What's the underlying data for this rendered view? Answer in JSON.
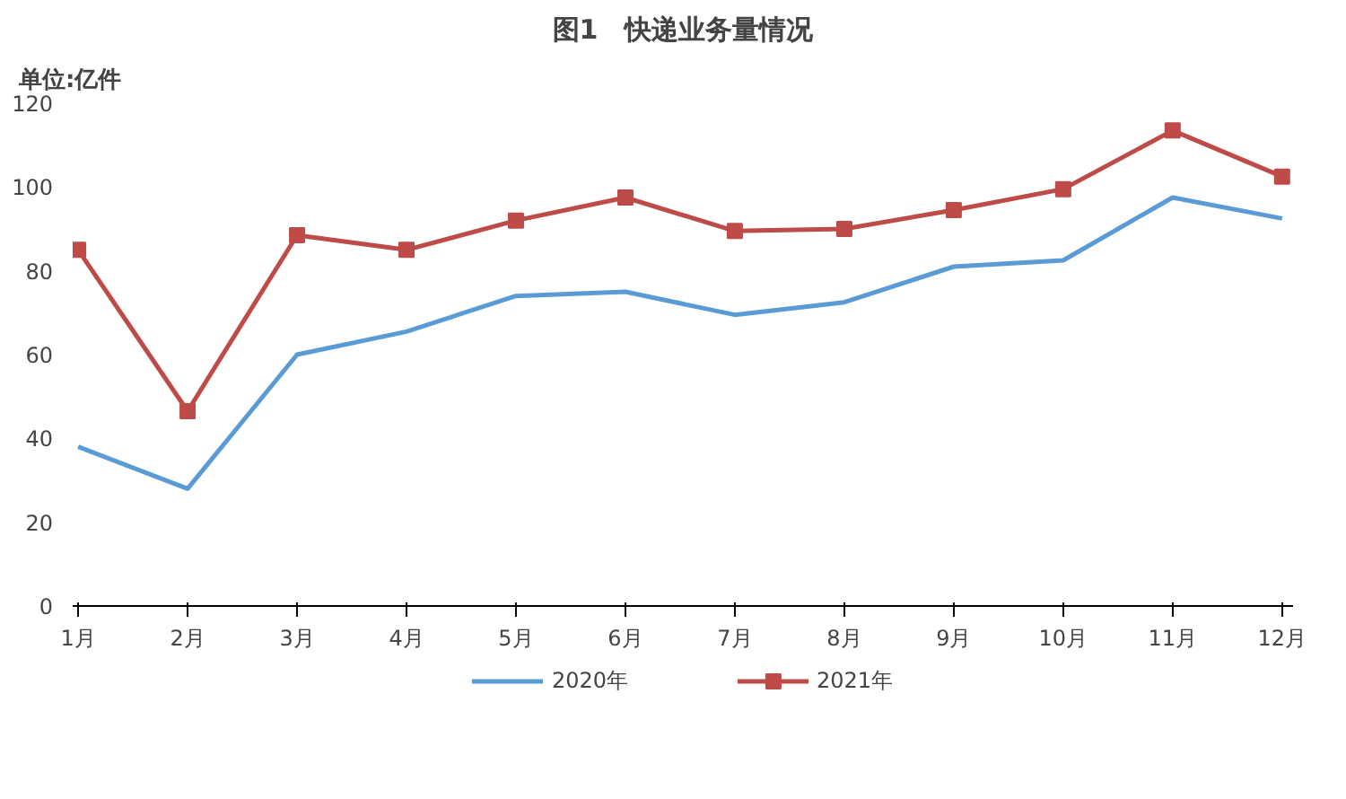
{
  "chart_data": {
    "type": "line",
    "title": "图1　快递业务量情况",
    "ylabel": "单位:亿件",
    "categories": [
      "1月",
      "2月",
      "3月",
      "4月",
      "5月",
      "6月",
      "7月",
      "8月",
      "9月",
      "10月",
      "11月",
      "12月"
    ],
    "series": [
      {
        "name": "2020年",
        "color": "#5b9bd5",
        "marker": "none",
        "values": [
          38,
          28,
          60,
          65.5,
          74,
          75,
          69.5,
          72.5,
          81,
          82.5,
          97.5,
          92.5
        ]
      },
      {
        "name": "2021年",
        "color": "#be4b48",
        "marker": "square",
        "values": [
          85,
          46.5,
          88.5,
          85,
          92,
          97.5,
          89.5,
          90,
          94.5,
          99.5,
          113.5,
          102.5
        ]
      }
    ],
    "ylim": [
      0,
      120
    ],
    "yticks": [
      0,
      20,
      40,
      60,
      80,
      100,
      120
    ],
    "grid": false,
    "legend": "bottom"
  }
}
